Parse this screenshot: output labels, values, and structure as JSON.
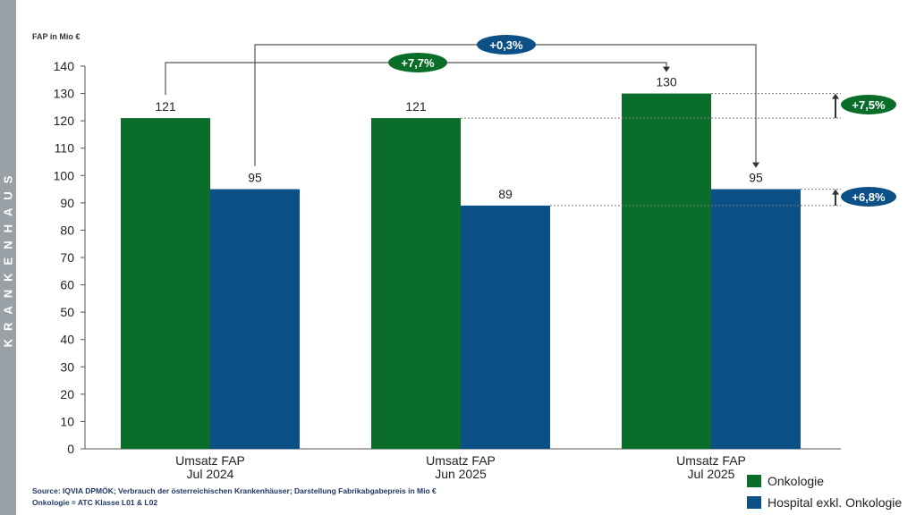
{
  "side_label": "KRANKENHAUS",
  "chart_data": {
    "type": "bar",
    "ylabel": "FAP in Mio €",
    "ylim": [
      0,
      140
    ],
    "yticks": [
      0,
      10,
      20,
      30,
      40,
      50,
      60,
      70,
      80,
      90,
      100,
      110,
      120,
      130,
      140
    ],
    "categories": [
      [
        "Umsatz FAP",
        "Jul 2024"
      ],
      [
        "Umsatz FAP",
        "Jun 2025"
      ],
      [
        "Umsatz FAP",
        "Jul 2025"
      ]
    ],
    "series": [
      {
        "name": "Onkologie",
        "color": "#0a6e2a",
        "values": [
          121,
          121,
          130
        ]
      },
      {
        "name": "Hospital exkl. Onkologie",
        "color": "#0b5086",
        "values": [
          95,
          89,
          95
        ]
      }
    ],
    "annotations": {
      "yoy_onko": "+7,7%",
      "yoy_hosp": "+0,3%",
      "mom_onko": "+7,5%",
      "mom_hosp": "+6,8%"
    },
    "legend_position": "bottom-right"
  },
  "footnotes": [
    "Source: IQVIA DPMÖK; Verbrauch der österreichischen Krankenhäuser; Darstellung Fabrikabgabepreis in Mio €",
    "Onkologie = ATC Klasse L01 & L02"
  ]
}
